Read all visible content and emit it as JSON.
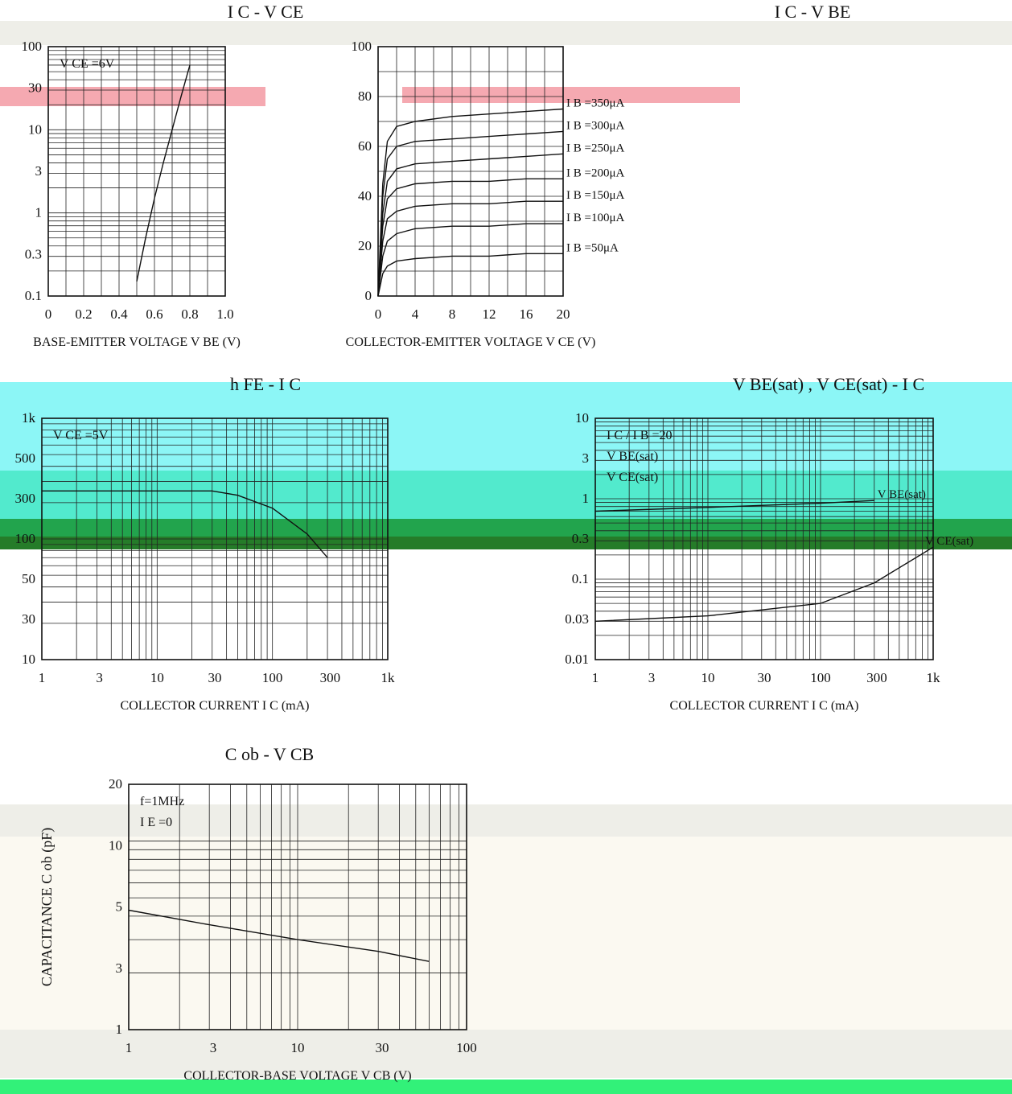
{
  "colors": {
    "ink": "#111111",
    "band_cyan": "#7ff5f5",
    "band_teal": "#3fe8c8",
    "band_green": "#0a9a3a",
    "band_darkgreen": "#0d6e12",
    "band_pink": "#f4a0a8",
    "band_cream": "#fbf8ef",
    "band_grey": "#ecece6",
    "band_neon": "#1cf06a"
  },
  "chart_data": [
    {
      "id": "ic_vce",
      "type": "line",
      "title": "I C - V CE",
      "xlabel": "COLLECTOR-EMITTER VOLTAGE V CE (V)",
      "y_ticks": [
        "100",
        "80",
        "60",
        "40",
        "20",
        "0"
      ],
      "x_ticks": [
        "0",
        "4",
        "8",
        "12",
        "16",
        "20"
      ],
      "xlim": [
        0,
        20
      ],
      "ylim": [
        0,
        100
      ],
      "series": [
        {
          "name": "I B =350μA",
          "x": [
            0,
            0.5,
            1,
            2,
            4,
            8,
            12,
            16,
            20
          ],
          "y": [
            0,
            45,
            62,
            68,
            70,
            72,
            73,
            74,
            75
          ]
        },
        {
          "name": "I B =300μA",
          "x": [
            0,
            0.5,
            1,
            2,
            4,
            8,
            12,
            16,
            20
          ],
          "y": [
            0,
            40,
            55,
            60,
            62,
            63,
            64,
            65,
            66
          ]
        },
        {
          "name": "I B =250μA",
          "x": [
            0,
            0.5,
            1,
            2,
            4,
            8,
            12,
            16,
            20
          ],
          "y": [
            0,
            33,
            46,
            51,
            53,
            54,
            55,
            56,
            57
          ]
        },
        {
          "name": "I B =200μA",
          "x": [
            0,
            0.5,
            1,
            2,
            4,
            8,
            12,
            16,
            20
          ],
          "y": [
            0,
            28,
            39,
            43,
            45,
            46,
            46,
            47,
            47
          ]
        },
        {
          "name": "I B =150μA",
          "x": [
            0,
            0.5,
            1,
            2,
            4,
            8,
            12,
            16,
            20
          ],
          "y": [
            0,
            22,
            31,
            34,
            36,
            37,
            37,
            38,
            38
          ]
        },
        {
          "name": "I B =100μA",
          "x": [
            0,
            0.5,
            1,
            2,
            4,
            8,
            12,
            16,
            20
          ],
          "y": [
            0,
            16,
            22,
            25,
            27,
            28,
            28,
            29,
            29
          ]
        },
        {
          "name": "I B =50μA",
          "x": [
            0,
            0.5,
            1,
            2,
            4,
            8,
            12,
            16,
            20
          ],
          "y": [
            0,
            9,
            12,
            14,
            15,
            16,
            16,
            17,
            17
          ]
        }
      ]
    },
    {
      "id": "ic_vbe",
      "type": "line",
      "title": "I C - V BE",
      "xlabel": "BASE-EMITTER VOLTAGE V BE (V)",
      "y_ticks": [
        "100",
        "30",
        "10",
        "3",
        "1",
        "0.3",
        "0.1"
      ],
      "x_ticks": [
        "0",
        "0.2",
        "0.4",
        "0.6",
        "0.8",
        "1.0"
      ],
      "xlim": [
        0,
        1.0
      ],
      "ylim": [
        0.1,
        100
      ],
      "annotations": [
        "V CE =6V"
      ],
      "series": [
        {
          "name": "V CE =6V",
          "x": [
            0.5,
            0.55,
            0.6,
            0.65,
            0.7,
            0.75,
            0.8
          ],
          "y": [
            0.15,
            0.5,
            1.5,
            4,
            10,
            25,
            60
          ]
        }
      ]
    },
    {
      "id": "hfe_ic",
      "type": "line",
      "title": "h FE - I C",
      "xlabel": "COLLECTOR CURRENT I C (mA)",
      "y_ticks": [
        "1k",
        "500",
        "300",
        "100",
        "50",
        "30",
        "10"
      ],
      "x_ticks": [
        "1",
        "3",
        "10",
        "30",
        "100",
        "300",
        "1k"
      ],
      "xlim": [
        1,
        1000
      ],
      "ylim": [
        10,
        1000
      ],
      "annotations": [
        "V CE =5V"
      ],
      "series": [
        {
          "name": "V CE =5V",
          "x": [
            1,
            3,
            10,
            30,
            50,
            100,
            200,
            300
          ],
          "y": [
            250,
            250,
            250,
            250,
            230,
            180,
            110,
            70
          ]
        }
      ]
    },
    {
      "id": "vsat_ic",
      "type": "line",
      "title": "V BE(sat) , V CE(sat) - I C",
      "xlabel": "COLLECTOR CURRENT I C (mA)",
      "y_ticks": [
        "10",
        "3",
        "1",
        "0.3",
        "0.1",
        "0.03",
        "0.01"
      ],
      "x_ticks": [
        "1",
        "3",
        "10",
        "30",
        "100",
        "300",
        "1k"
      ],
      "xlim": [
        1,
        1000
      ],
      "ylim": [
        0.01,
        10
      ],
      "annotations": [
        "I C / I B =20",
        "V BE(sat)",
        "V CE(sat)"
      ],
      "series": [
        {
          "name": "V BE(sat)",
          "x": [
            1,
            10,
            100,
            300
          ],
          "y": [
            0.7,
            0.78,
            0.88,
            0.95
          ]
        },
        {
          "name": "V CE(sat)",
          "x": [
            1,
            10,
            100,
            300,
            1000
          ],
          "y": [
            0.03,
            0.035,
            0.05,
            0.09,
            0.25
          ]
        }
      ]
    },
    {
      "id": "cob_vcb",
      "type": "line",
      "title": "C ob - V CB",
      "xlabel": "COLLECTOR-BASE VOLTAGE V CB (V)",
      "ylabel": "CAPACITANCE C ob (pF)",
      "y_ticks": [
        "20",
        "10",
        "5",
        "3",
        "1"
      ],
      "x_ticks": [
        "1",
        "3",
        "10",
        "30",
        "100"
      ],
      "xlim": [
        1,
        100
      ],
      "ylim": [
        1,
        20
      ],
      "annotations": [
        "f=1MHz",
        "I E =0"
      ],
      "series": [
        {
          "name": "Cob",
          "x": [
            1,
            3,
            10,
            30,
            60
          ],
          "y": [
            4.3,
            3.6,
            3.0,
            2.6,
            2.3
          ]
        }
      ]
    }
  ]
}
